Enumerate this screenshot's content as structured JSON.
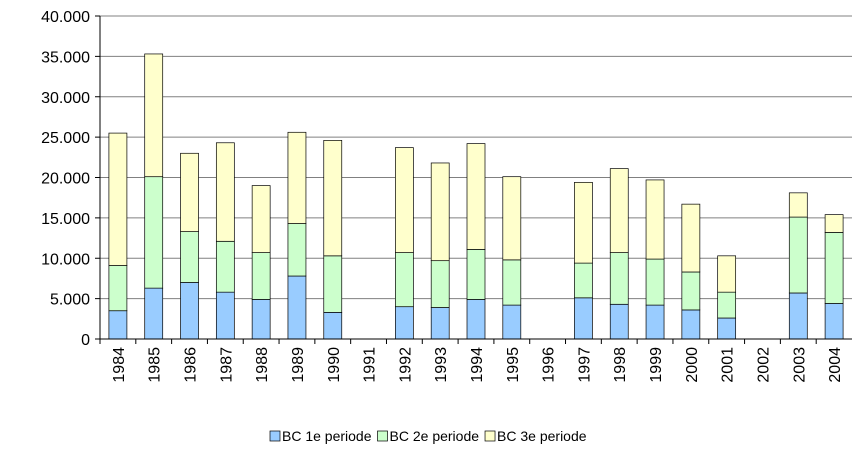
{
  "chart_data": {
    "type": "stacked-bar",
    "categories": [
      "1984",
      "1985",
      "1986",
      "1987",
      "1988",
      "1989",
      "1990",
      "1991",
      "1992",
      "1993",
      "1994",
      "1995",
      "1996",
      "1997",
      "1998",
      "1999",
      "2000",
      "2001",
      "2002",
      "2003",
      "2004"
    ],
    "series": [
      {
        "name": "BC 1e periode",
        "color": "#99ccff",
        "values": [
          3500,
          6300,
          7000,
          5800,
          4900,
          7800,
          3300,
          null,
          4000,
          3900,
          4900,
          4200,
          null,
          5100,
          4300,
          4200,
          3600,
          2600,
          null,
          5700,
          4400
        ]
      },
      {
        "name": "BC 2e periode",
        "color": "#ccffcc",
        "values": [
          5600,
          13800,
          6300,
          6300,
          5800,
          6500,
          7000,
          null,
          6700,
          5800,
          6200,
          5600,
          null,
          4300,
          6400,
          5700,
          4700,
          3200,
          null,
          9400,
          8800
        ]
      },
      {
        "name": "BC 3e periode",
        "color": "#ffffcc",
        "values": [
          16400,
          15200,
          9700,
          12200,
          8300,
          11300,
          14300,
          null,
          13000,
          12100,
          13100,
          10300,
          null,
          10000,
          10400,
          9800,
          8400,
          4500,
          null,
          3000,
          2200
        ]
      }
    ],
    "ylim": [
      0,
      40000
    ],
    "yticks": [
      0,
      {
        "value": 5000,
        "label": "5.000"
      },
      {
        "value": 10000,
        "label": "10.000"
      },
      {
        "value": 15000,
        "label": "15.000"
      },
      {
        "value": 20000,
        "label": "20.000"
      },
      {
        "value": 25000,
        "label": "25.000"
      },
      {
        "value": 30000,
        "label": "30.000"
      },
      {
        "value": 35000,
        "label": "35.000"
      },
      {
        "value": 40000,
        "label": "40.000"
      }
    ],
    "grid": true,
    "legend": "bottom"
  }
}
